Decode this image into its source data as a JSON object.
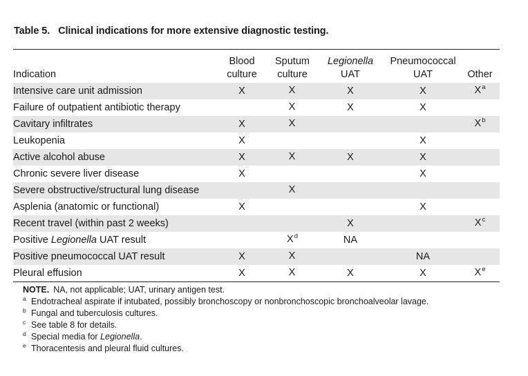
{
  "caption": {
    "label": "Table 5.",
    "title": "Clinical indications for more extensive diagnostic testing."
  },
  "columns": [
    {
      "line1": "",
      "line2": "Indication"
    },
    {
      "line1": "Blood",
      "line2": "culture"
    },
    {
      "line1": "Sputum",
      "line2": "culture"
    },
    {
      "line1": "Legionella",
      "line2": "UAT",
      "italic": true
    },
    {
      "line1": "Pneumococcal",
      "line2": "UAT"
    },
    {
      "line1": "",
      "line2": "Other"
    }
  ],
  "rows": [
    {
      "pre": "Intensive care unit admission",
      "it": "",
      "post": "",
      "blood": "X",
      "sputum": "X",
      "sputum_sup": "",
      "legionella": "X",
      "pneumo": "X",
      "other": "X",
      "other_sup": "a"
    },
    {
      "pre": "Failure of outpatient antibiotic therapy",
      "it": "",
      "post": "",
      "blood": "",
      "sputum": "X",
      "sputum_sup": "",
      "legionella": "X",
      "pneumo": "X",
      "other": "",
      "other_sup": ""
    },
    {
      "pre": "Cavitary infiltrates",
      "it": "",
      "post": "",
      "blood": "X",
      "sputum": "X",
      "sputum_sup": "",
      "legionella": "",
      "pneumo": "",
      "other": "X",
      "other_sup": "b"
    },
    {
      "pre": "Leukopenia",
      "it": "",
      "post": "",
      "blood": "X",
      "sputum": "",
      "sputum_sup": "",
      "legionella": "",
      "pneumo": "X",
      "other": "",
      "other_sup": ""
    },
    {
      "pre": "Active alcohol abuse",
      "it": "",
      "post": "",
      "blood": "X",
      "sputum": "X",
      "sputum_sup": "",
      "legionella": "X",
      "pneumo": "X",
      "other": "",
      "other_sup": ""
    },
    {
      "pre": "Chronic severe liver disease",
      "it": "",
      "post": "",
      "blood": "X",
      "sputum": "",
      "sputum_sup": "",
      "legionella": "",
      "pneumo": "X",
      "other": "",
      "other_sup": ""
    },
    {
      "pre": "Severe obstructive/structural lung disease",
      "it": "",
      "post": "",
      "blood": "",
      "sputum": "X",
      "sputum_sup": "",
      "legionella": "",
      "pneumo": "",
      "other": "",
      "other_sup": ""
    },
    {
      "pre": "Asplenia (anatomic or functional)",
      "it": "",
      "post": "",
      "blood": "X",
      "sputum": "",
      "sputum_sup": "",
      "legionella": "",
      "pneumo": "X",
      "other": "",
      "other_sup": ""
    },
    {
      "pre": "Recent travel (within past 2 weeks)",
      "it": "",
      "post": "",
      "blood": "",
      "sputum": "",
      "sputum_sup": "",
      "legionella": "X",
      "pneumo": "",
      "other": "X",
      "other_sup": "c"
    },
    {
      "pre": "Positive ",
      "it": "Legionella",
      "post": " UAT result",
      "blood": "",
      "sputum": "X",
      "sputum_sup": "d",
      "legionella": "NA",
      "pneumo": "",
      "other": "",
      "other_sup": ""
    },
    {
      "pre": "Positive pneumococcal UAT result",
      "it": "",
      "post": "",
      "blood": "X",
      "sputum": "X",
      "sputum_sup": "",
      "legionella": "",
      "pneumo": "NA",
      "other": "",
      "other_sup": ""
    },
    {
      "pre": "Pleural effusion",
      "it": "",
      "post": "",
      "blood": "X",
      "sputum": "X",
      "sputum_sup": "",
      "legionella": "X",
      "pneumo": "X",
      "other": "X",
      "other_sup": "e"
    }
  ],
  "note": {
    "label": "NOTE.",
    "text": "NA, not applicable; UAT, urinary antigen test."
  },
  "footnotes": [
    {
      "mark": "a",
      "pre": "Endotracheal aspirate if intubated, possibly bronchoscopy or nonbronchoscopic bronchoalveolar lavage.",
      "it": "",
      "post": ""
    },
    {
      "mark": "b",
      "pre": "Fungal and tuberculosis cultures.",
      "it": "",
      "post": ""
    },
    {
      "mark": "c",
      "pre": "See table 8 for details.",
      "it": "",
      "post": ""
    },
    {
      "mark": "d",
      "pre": "Special media for ",
      "it": "Legionella",
      "post": "."
    },
    {
      "mark": "e",
      "pre": "Thoracentesis and pleural fluid cultures.",
      "it": "",
      "post": ""
    }
  ]
}
